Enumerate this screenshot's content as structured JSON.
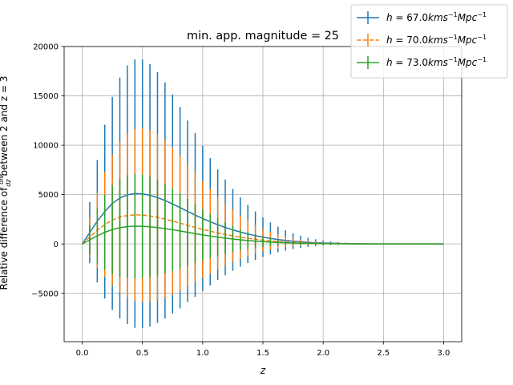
{
  "chart_data": {
    "type": "line",
    "title": "min. app. magnitude = 25",
    "xlabel": "z",
    "ylabel": "Relative difference of dN/dz between 2 and z = 3",
    "ylabel_parts": {
      "before": "Relative difference of ",
      "frac_num": "dN",
      "frac_den": "dz",
      "after": " between 2 and z = 3"
    },
    "xlim": [
      -0.15,
      3.15
    ],
    "ylim": [
      -9900,
      20000
    ],
    "xticks": [
      "0.0",
      "0.5",
      "1.0",
      "1.5",
      "2.0",
      "2.5",
      "3.0"
    ],
    "yticks": [
      "−5000",
      "0",
      "5000",
      "10000",
      "15000",
      "20000"
    ],
    "grid": true,
    "legend_position": "top-right",
    "series": [
      {
        "name": "h = 67.0 kms⁻¹ Mpc⁻¹",
        "legend_text": {
          "pre": "h",
          "eq": " = 67.0",
          "kms": "kms",
          "mpc": "Mpc",
          "sup": "−1"
        },
        "color": "#1f77b4",
        "dash": "solid",
        "x": [
          0.0,
          0.0625,
          0.125,
          0.1875,
          0.25,
          0.3125,
          0.375,
          0.4375,
          0.5,
          0.5625,
          0.625,
          0.6875,
          0.75,
          0.8125,
          0.875,
          0.9375,
          1.0,
          1.0625,
          1.125,
          1.1875,
          1.25,
          1.3125,
          1.375,
          1.4375,
          1.5,
          1.5625,
          1.625,
          1.6875,
          1.75,
          1.8125,
          1.875,
          1.9375,
          2.0,
          2.0625,
          2.125,
          2.1875,
          2.25,
          2.3125,
          2.375,
          2.4375,
          2.5,
          2.5625,
          2.625,
          2.6875,
          2.75,
          2.8125,
          2.875,
          2.9375,
          3.0
        ],
        "y": [
          0,
          1150,
          2300,
          3280,
          4100,
          4650,
          4980,
          5100,
          5080,
          4930,
          4700,
          4400,
          4050,
          3680,
          3300,
          2930,
          2580,
          2250,
          1950,
          1680,
          1430,
          1210,
          1010,
          840,
          690,
          560,
          450,
          360,
          280,
          215,
          165,
          125,
          95,
          70,
          50,
          36,
          25,
          17,
          11,
          7,
          4,
          2,
          1,
          0,
          0,
          0,
          0,
          0,
          0
        ],
        "err": [
          0,
          3100,
          6200,
          8800,
          10800,
          12200,
          13100,
          13600,
          13600,
          13300,
          12700,
          11950,
          11100,
          10200,
          9200,
          8300,
          7350,
          6450,
          5600,
          4850,
          4150,
          3500,
          2950,
          2450,
          2000,
          1620,
          1300,
          1030,
          800,
          620,
          470,
          350,
          260,
          190,
          135,
          95,
          65,
          45,
          30,
          20,
          12,
          8,
          5,
          3,
          2,
          1,
          0,
          0,
          0
        ]
      },
      {
        "name": "h = 70.0 kms⁻¹ Mpc⁻¹",
        "legend_text": {
          "pre": "h",
          "eq": " = 70.0",
          "kms": "kms",
          "mpc": "Mpc",
          "sup": "−1"
        },
        "color": "#ff7f0e",
        "dash": "dashed",
        "x": [
          0.0,
          0.0625,
          0.125,
          0.1875,
          0.25,
          0.3125,
          0.375,
          0.4375,
          0.5,
          0.5625,
          0.625,
          0.6875,
          0.75,
          0.8125,
          0.875,
          0.9375,
          1.0,
          1.0625,
          1.125,
          1.1875,
          1.25,
          1.3125,
          1.375,
          1.4375,
          1.5,
          1.5625,
          1.625,
          1.6875,
          1.75,
          1.8125,
          1.875,
          1.9375,
          2.0,
          2.0625,
          2.125,
          2.1875,
          2.25,
          2.3125,
          2.375,
          2.4375,
          2.5,
          2.5625,
          2.625,
          2.6875,
          2.75,
          2.8125,
          2.875,
          2.9375,
          3.0
        ],
        "y": [
          0,
          700,
          1380,
          1960,
          2420,
          2730,
          2890,
          2950,
          2930,
          2840,
          2700,
          2520,
          2320,
          2110,
          1890,
          1680,
          1480,
          1290,
          1120,
          960,
          820,
          690,
          580,
          480,
          390,
          320,
          255,
          200,
          155,
          118,
          90,
          68,
          50,
          37,
          27,
          19,
          13,
          9,
          6,
          4,
          2,
          1,
          1,
          0,
          0,
          0,
          0,
          0,
          0
        ],
        "err": [
          0,
          2000,
          3800,
          5300,
          6600,
          7600,
          8300,
          8700,
          8800,
          8700,
          8400,
          8000,
          7450,
          6850,
          6200,
          5550,
          4900,
          4300,
          3700,
          3150,
          2650,
          2200,
          1800,
          1450,
          1150,
          900,
          700,
          530,
          400,
          300,
          220,
          160,
          115,
          80,
          55,
          38,
          26,
          17,
          11,
          7,
          4,
          3,
          2,
          1,
          1,
          0,
          0,
          0,
          0
        ]
      },
      {
        "name": "h = 73.0 kms⁻¹ Mpc⁻¹",
        "legend_text": {
          "pre": "h",
          "eq": " = 73.0",
          "kms": "kms",
          "mpc": "Mpc",
          "sup": "−1"
        },
        "color": "#2ca02c",
        "dash": "solid",
        "x": [
          0.0,
          0.0625,
          0.125,
          0.1875,
          0.25,
          0.3125,
          0.375,
          0.4375,
          0.5,
          0.5625,
          0.625,
          0.6875,
          0.75,
          0.8125,
          0.875,
          0.9375,
          1.0,
          1.0625,
          1.125,
          1.1875,
          1.25,
          1.3125,
          1.375,
          1.4375,
          1.5,
          1.5625,
          1.625,
          1.6875,
          1.75,
          1.8125,
          1.875,
          1.9375,
          2.0,
          2.0625,
          2.125,
          2.1875,
          2.25,
          2.3125,
          2.375,
          2.4375,
          2.5,
          2.5625,
          2.625,
          2.6875,
          2.75,
          2.8125,
          2.875,
          2.9375,
          3.0
        ],
        "y": [
          0,
          420,
          820,
          1180,
          1460,
          1650,
          1760,
          1800,
          1790,
          1740,
          1660,
          1560,
          1440,
          1310,
          1180,
          1050,
          920,
          800,
          690,
          590,
          500,
          420,
          350,
          290,
          235,
          190,
          150,
          118,
          90,
          68,
          51,
          38,
          28,
          20,
          14,
          10,
          7,
          5,
          3,
          2,
          1,
          1,
          0,
          0,
          0,
          0,
          0,
          0,
          0
        ],
        "err": [
          0,
          1500,
          2800,
          3800,
          4500,
          4950,
          5200,
          5300,
          5250,
          5100,
          4850,
          4550,
          4200,
          3800,
          3400,
          3000,
          2600,
          2250,
          1900,
          1600,
          1320,
          1080,
          870,
          700,
          550,
          420,
          320,
          240,
          175,
          128,
          92,
          65,
          45,
          31,
          21,
          14,
          9,
          6,
          4,
          2,
          1,
          1,
          0,
          0,
          0,
          0,
          0,
          0,
          0
        ]
      }
    ]
  }
}
